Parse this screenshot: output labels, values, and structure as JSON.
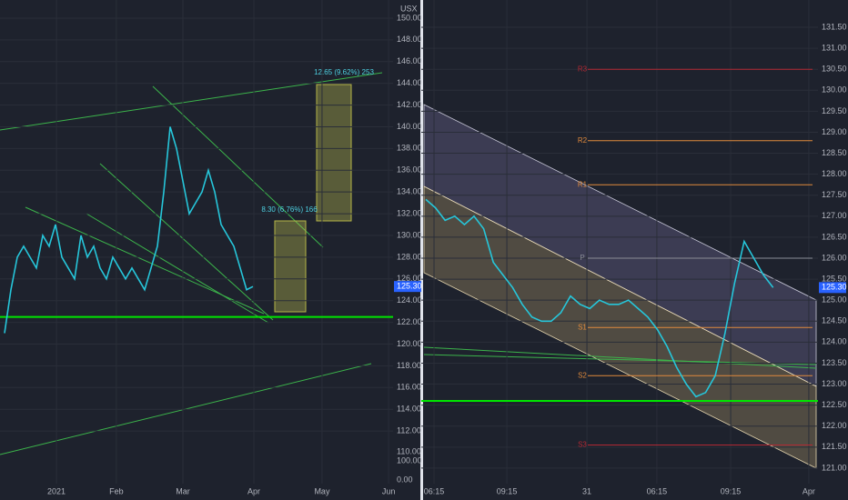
{
  "chart_data": [
    {
      "type": "line",
      "color": "#26c6da",
      "axis_unit": "USX",
      "xlim": [
        0,
        122
      ],
      "ylim": [
        105.65,
        151.67
      ],
      "xticks": [
        {
          "value": 16.3,
          "label": "2021"
        },
        {
          "value": 35.1,
          "label": "Feb"
        },
        {
          "value": 56,
          "label": "Mar"
        },
        {
          "value": 78.3,
          "label": "Apr"
        },
        {
          "value": 99.7,
          "label": "May"
        },
        {
          "value": 120.6,
          "label": "Jun"
        }
      ],
      "yticks": [
        {
          "value": 112,
          "label": "112.00"
        },
        {
          "value": 114,
          "label": "114.00"
        },
        {
          "value": 116,
          "label": "116.00"
        },
        {
          "value": 118,
          "label": "118.00"
        },
        {
          "value": 120,
          "label": "120.00"
        },
        {
          "value": 122,
          "label": "122.00"
        },
        {
          "value": 124,
          "label": "124.00"
        },
        {
          "value": 126,
          "label": "126.00"
        },
        {
          "value": 128,
          "label": "128.00"
        },
        {
          "value": 130,
          "label": "130.00"
        },
        {
          "value": 132,
          "label": "132.00"
        },
        {
          "value": 134,
          "label": "134.00"
        },
        {
          "value": 136,
          "label": "136.00"
        },
        {
          "value": 138,
          "label": "138.00"
        },
        {
          "value": 140,
          "label": "140.00"
        },
        {
          "value": 142,
          "label": "142.00"
        },
        {
          "value": 144,
          "label": "144.00"
        },
        {
          "value": 146,
          "label": "146.00"
        },
        {
          "value": 148,
          "label": "148.00"
        },
        {
          "value": 150,
          "label": "150.00"
        }
      ],
      "axis_notes": [
        "110.00",
        "100.00",
        "0.00"
      ],
      "x": [
        0,
        2,
        4,
        6,
        8,
        10,
        12,
        14,
        16,
        18,
        20,
        22,
        24,
        26,
        28,
        30,
        32,
        34,
        36,
        38,
        40,
        42,
        44,
        46,
        48,
        50,
        52,
        54,
        56,
        58,
        60,
        62,
        64,
        66,
        68,
        70,
        72,
        74,
        76,
        78
      ],
      "values": [
        121,
        125,
        128,
        129,
        128,
        127,
        130,
        129,
        131,
        128,
        127,
        126,
        130,
        128,
        129,
        127,
        126,
        128,
        127,
        126,
        127,
        126,
        125,
        127,
        129,
        134,
        140,
        138,
        135,
        132,
        133,
        134,
        136,
        134,
        131,
        130,
        129,
        127,
        125,
        125.3
      ],
      "hlines": [
        {
          "value": 122.5,
          "color": "#00e600"
        }
      ],
      "last_price": {
        "value": 125.3,
        "label": "125.30"
      },
      "annotations": [
        "12.65 (9.62%) 253",
        "8.30 (6.76%) 166"
      ]
    },
    {
      "type": "line",
      "color": "#26c6da",
      "xlim": [
        0,
        81.3
      ],
      "ylim": [
        120.24,
        132.15
      ],
      "xticks": [
        {
          "value": 1.7,
          "label": "06:15"
        },
        {
          "value": 16.8,
          "label": "09:15"
        },
        {
          "value": 33.4,
          "label": "31"
        },
        {
          "value": 47.9,
          "label": "06:15"
        },
        {
          "value": 63.2,
          "label": "09:15"
        },
        {
          "value": 79.4,
          "label": "Apr"
        }
      ],
      "yticks": [
        {
          "value": 121,
          "label": "121.00"
        },
        {
          "value": 121.5,
          "label": "121.50"
        },
        {
          "value": 122,
          "label": "122.00"
        },
        {
          "value": 122.5,
          "label": "122.50"
        },
        {
          "value": 123,
          "label": "123.00"
        },
        {
          "value": 123.5,
          "label": "123.50"
        },
        {
          "value": 124,
          "label": "124.00"
        },
        {
          "value": 124.5,
          "label": "124.50"
        },
        {
          "value": 125,
          "label": "125.00"
        },
        {
          "value": 125.5,
          "label": "125.50"
        },
        {
          "value": 126,
          "label": "126.00"
        },
        {
          "value": 126.5,
          "label": "126.50"
        },
        {
          "value": 127,
          "label": "127.00"
        },
        {
          "value": 127.5,
          "label": "127.50"
        },
        {
          "value": 128,
          "label": "128.00"
        },
        {
          "value": 128.5,
          "label": "128.50"
        },
        {
          "value": 129,
          "label": "129.00"
        },
        {
          "value": 129.5,
          "label": "129.50"
        },
        {
          "value": 130,
          "label": "130.00"
        },
        {
          "value": 130.5,
          "label": "130.50"
        },
        {
          "value": 131,
          "label": "131.00"
        },
        {
          "value": 131.5,
          "label": "131.50"
        }
      ],
      "x": [
        0,
        2,
        4,
        6,
        8,
        10,
        12,
        14,
        16,
        18,
        20,
        22,
        24,
        26,
        28,
        30,
        32,
        34,
        36,
        38,
        40,
        42,
        44,
        46,
        48,
        50,
        52,
        54,
        56,
        58,
        60,
        62,
        64,
        66,
        68,
        70,
        72
      ],
      "values": [
        127.4,
        127.2,
        126.9,
        127.0,
        126.8,
        127.0,
        126.7,
        125.9,
        125.6,
        125.3,
        124.9,
        124.6,
        124.5,
        124.5,
        124.7,
        125.1,
        124.9,
        124.8,
        125.0,
        124.9,
        124.9,
        125.0,
        124.8,
        124.6,
        124.3,
        123.9,
        123.4,
        123.0,
        122.7,
        122.8,
        123.2,
        124.2,
        125.4,
        126.4,
        126.0,
        125.6,
        125.3
      ],
      "levels": [
        {
          "label": "R3",
          "value": 130.5,
          "color": "#b22833"
        },
        {
          "label": "R2",
          "value": 128.8,
          "color": "#e08a3c"
        },
        {
          "label": "R1",
          "value": 127.75,
          "color": "#e08a3c"
        },
        {
          "label": "P",
          "value": 126.0,
          "color": "#8a8d96"
        },
        {
          "label": "S1",
          "value": 124.35,
          "color": "#e08a3c"
        },
        {
          "label": "S2",
          "value": 123.2,
          "color": "#e08a3c"
        },
        {
          "label": "S3",
          "value": 121.55,
          "color": "#b22833"
        }
      ],
      "hlines": [
        {
          "value": 122.6,
          "color": "#00e600"
        }
      ],
      "last_price": {
        "value": 125.3,
        "label": "125.30"
      }
    }
  ]
}
